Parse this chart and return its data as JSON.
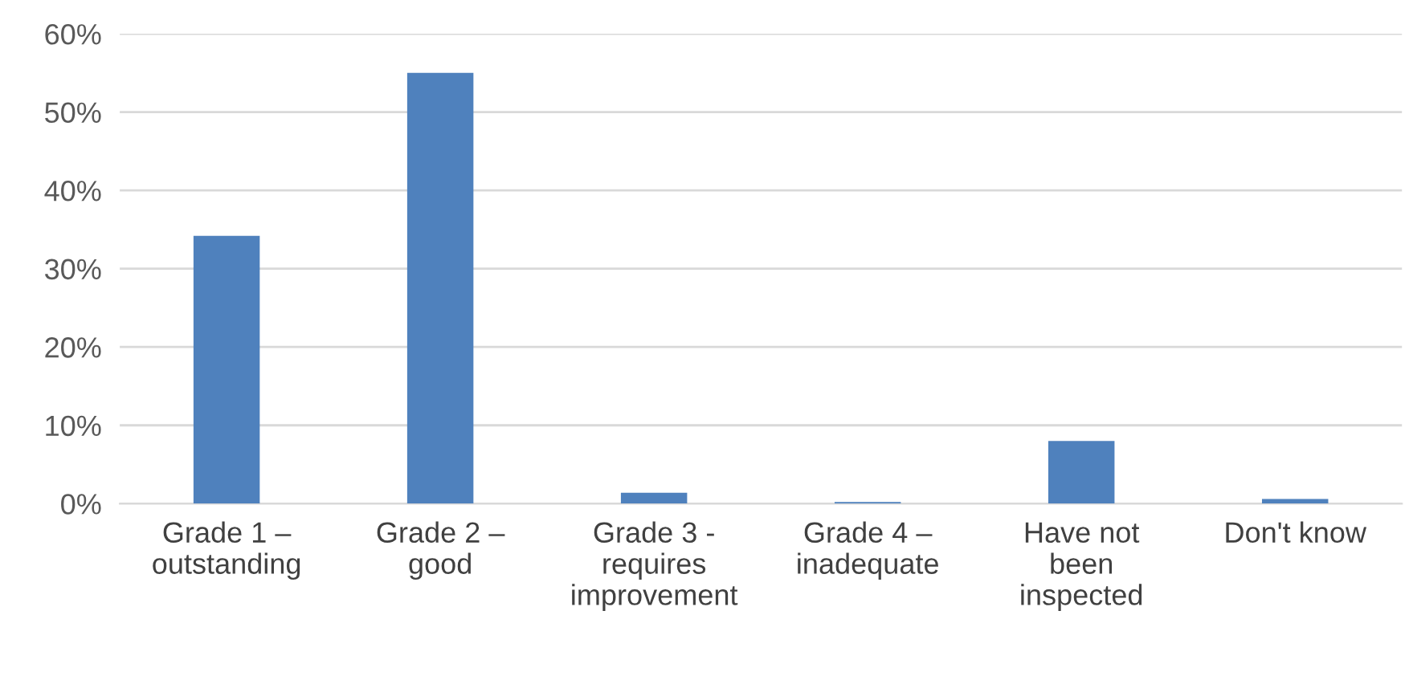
{
  "chart_data": {
    "type": "bar",
    "categories": [
      "Grade 1 –\noutstanding",
      "Grade 2 –\ngood",
      "Grade 3 -\nrequires\nimprovement",
      "Grade 4 –\ninadequate",
      "Have not\nbeen\ninspected",
      "Don't know"
    ],
    "values": [
      34.2,
      55,
      1.4,
      0.2,
      8,
      0.6
    ],
    "color": "#4f81bd",
    "ylim": [
      0,
      60
    ],
    "yticks": [
      {
        "value": 0,
        "label": "0%"
      },
      {
        "value": 10,
        "label": "10%"
      },
      {
        "value": 20,
        "label": "20%"
      },
      {
        "value": 30,
        "label": "30%"
      },
      {
        "value": 40,
        "label": "40%"
      },
      {
        "value": 50,
        "label": "50%"
      },
      {
        "value": 60,
        "label": "60%"
      }
    ],
    "grid": "y"
  }
}
